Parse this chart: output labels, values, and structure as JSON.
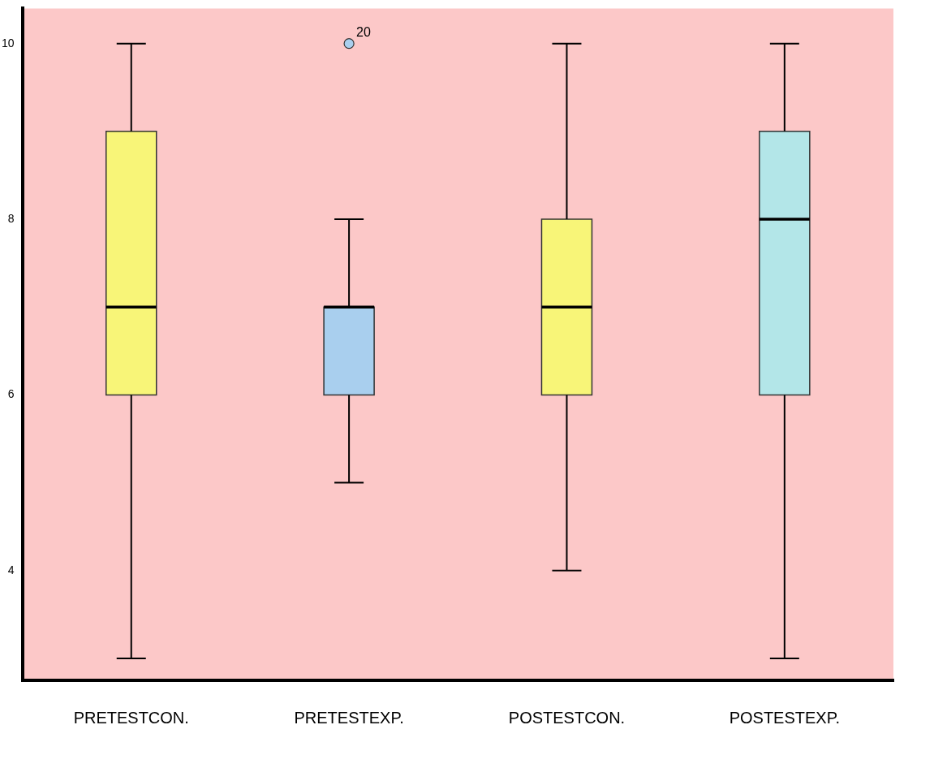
{
  "chart_data": {
    "type": "box",
    "categories": [
      "PRETESTCON.",
      "PRETESTEXP.",
      "POSTESTCON.",
      "POSTESTEXP."
    ],
    "boxes": [
      {
        "low": 3,
        "q1": 6,
        "median": 7,
        "q3": 9,
        "high": 10
      },
      {
        "low": 5,
        "q1": 6,
        "median": 7,
        "q3": 7,
        "high": 8,
        "outliers": [
          10
        ]
      },
      {
        "low": 4,
        "q1": 6,
        "median": 7,
        "q3": 8,
        "high": 10
      },
      {
        "low": 3,
        "q1": 6,
        "median": 8,
        "q3": 9,
        "high": 10
      }
    ],
    "colors": [
      "#f8f578",
      "#a9cfee",
      "#f8f578",
      "#b3e6e8"
    ],
    "ylim": [
      2.75,
      10.4
    ],
    "yticks": [
      4,
      6,
      8,
      10
    ],
    "grid": false,
    "legend": false,
    "annotations": [
      "20"
    ]
  }
}
